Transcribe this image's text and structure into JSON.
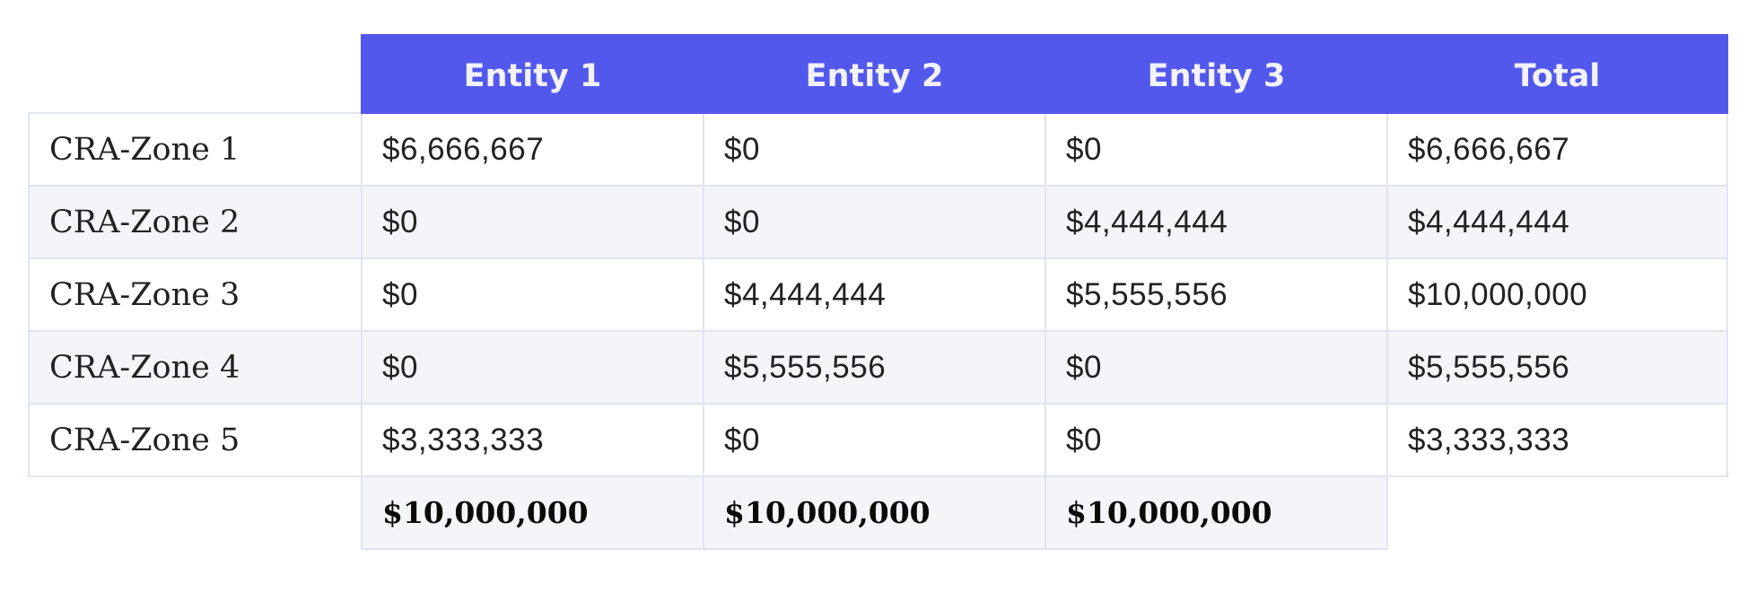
{
  "chart_data": {
    "type": "table",
    "columns": [
      "Entity 1",
      "Entity 2",
      "Entity 3",
      "Total"
    ],
    "rows": [
      {
        "label": "CRA-Zone 1",
        "values": [
          "$6,666,667",
          "$0",
          "$0",
          "$6,666,667"
        ]
      },
      {
        "label": "CRA-Zone 2",
        "values": [
          "$0",
          "$0",
          "$4,444,444",
          "$4,444,444"
        ]
      },
      {
        "label": "CRA-Zone 3",
        "values": [
          "$0",
          "$4,444,444",
          "$5,555,556",
          "$10,000,000"
        ]
      },
      {
        "label": "CRA-Zone 4",
        "values": [
          "$0",
          "$5,555,556",
          "$0",
          "$5,555,556"
        ]
      },
      {
        "label": "CRA-Zone 5",
        "values": [
          "$3,333,333",
          "$0",
          "$0",
          "$3,333,333"
        ]
      }
    ],
    "column_totals": [
      "$10,000,000",
      "$10,000,000",
      "$10,000,000"
    ],
    "colors": {
      "header_bg": "#5358ec",
      "header_text": "#f2f3ff",
      "row_alt_bg": "#f4f5f9",
      "border": "#e1e4f0"
    }
  }
}
